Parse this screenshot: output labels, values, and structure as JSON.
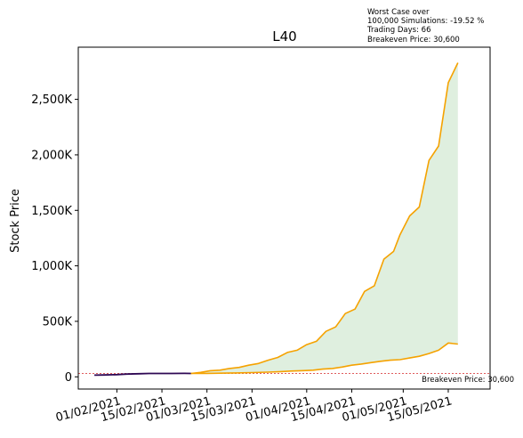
{
  "info_box": {
    "line1": "Worst Case over",
    "line2": "100,000 Simulations: -19.52 %",
    "line3": "Trading Days: 66",
    "line4": "Breakeven Price: 30,600"
  },
  "chart_data": {
    "type": "line",
    "title": "L40",
    "xlabel": "",
    "ylabel": "Stock Price",
    "grid": false,
    "y_tick_labels": [
      "0",
      "500K",
      "1,000K",
      "1,500K",
      "2,000K",
      "2,500K"
    ],
    "y_ticks": [
      0,
      500000,
      1000000,
      1500000,
      2000000,
      2500000
    ],
    "x_tick_labels": [
      "01/02/2021",
      "15/02/2021",
      "01/03/2021",
      "15/03/2021",
      "01/04/2021",
      "15/04/2021",
      "01/05/2021",
      "15/05/2021"
    ],
    "x_ticks": [
      "2021-02-01",
      "2021-02-15",
      "2021-03-01",
      "2021-03-15",
      "2021-04-01",
      "2021-04-15",
      "2021-05-01",
      "2021-05-15"
    ],
    "xlim": [
      "2021-01-20",
      "2021-05-28"
    ],
    "ylim": [
      -110000,
      2970000
    ],
    "breakeven": {
      "value": 30600,
      "label": "Breakeven Price: 30,600",
      "color": "#d62728"
    },
    "historical": {
      "color": "#2e0854",
      "points": [
        [
          "2021-01-25",
          15000
        ],
        [
          "2021-01-28",
          17000
        ],
        [
          "2021-02-01",
          20000
        ],
        [
          "2021-02-04",
          25000
        ],
        [
          "2021-02-08",
          28000
        ],
        [
          "2021-02-11",
          30000
        ],
        [
          "2021-02-15",
          30000
        ],
        [
          "2021-02-18",
          30500
        ],
        [
          "2021-02-22",
          31000
        ],
        [
          "2021-02-24",
          30600
        ]
      ]
    },
    "upper_series": {
      "color": "#f5a200",
      "points": [
        [
          "2021-02-24",
          30600
        ],
        [
          "2021-02-27",
          40000
        ],
        [
          "2021-03-02",
          55000
        ],
        [
          "2021-03-05",
          60000
        ],
        [
          "2021-03-08",
          75000
        ],
        [
          "2021-03-11",
          85000
        ],
        [
          "2021-03-14",
          105000
        ],
        [
          "2021-03-17",
          120000
        ],
        [
          "2021-03-20",
          150000
        ],
        [
          "2021-03-23",
          175000
        ],
        [
          "2021-03-26",
          220000
        ],
        [
          "2021-03-29",
          240000
        ],
        [
          "2021-04-01",
          290000
        ],
        [
          "2021-04-04",
          320000
        ],
        [
          "2021-04-07",
          410000
        ],
        [
          "2021-04-10",
          450000
        ],
        [
          "2021-04-13",
          570000
        ],
        [
          "2021-04-16",
          610000
        ],
        [
          "2021-04-19",
          770000
        ],
        [
          "2021-04-22",
          820000
        ],
        [
          "2021-04-25",
          1060000
        ],
        [
          "2021-04-28",
          1130000
        ],
        [
          "2021-04-30",
          1280000
        ],
        [
          "2021-05-03",
          1450000
        ],
        [
          "2021-05-06",
          1530000
        ],
        [
          "2021-05-09",
          1950000
        ],
        [
          "2021-05-12",
          2080000
        ],
        [
          "2021-05-15",
          2650000
        ],
        [
          "2021-05-18",
          2830000
        ]
      ]
    },
    "lower_series": {
      "color": "#f5a200",
      "points": [
        [
          "2021-02-24",
          30600
        ],
        [
          "2021-03-01",
          31000
        ],
        [
          "2021-03-05",
          33000
        ],
        [
          "2021-03-10",
          35000
        ],
        [
          "2021-03-15",
          38000
        ],
        [
          "2021-03-20",
          42000
        ],
        [
          "2021-03-24",
          47000
        ],
        [
          "2021-03-27",
          52000
        ],
        [
          "2021-03-31",
          56000
        ],
        [
          "2021-04-03",
          60000
        ],
        [
          "2021-04-06",
          70000
        ],
        [
          "2021-04-09",
          75000
        ],
        [
          "2021-04-12",
          88000
        ],
        [
          "2021-04-15",
          105000
        ],
        [
          "2021-04-18",
          115000
        ],
        [
          "2021-04-21",
          128000
        ],
        [
          "2021-04-24",
          140000
        ],
        [
          "2021-04-27",
          150000
        ],
        [
          "2021-04-30",
          155000
        ],
        [
          "2021-05-03",
          170000
        ],
        [
          "2021-05-06",
          185000
        ],
        [
          "2021-05-09",
          210000
        ],
        [
          "2021-05-12",
          240000
        ],
        [
          "2021-05-15",
          305000
        ],
        [
          "2021-05-18",
          295000
        ]
      ]
    },
    "fill_color": "#d9ecd9"
  }
}
